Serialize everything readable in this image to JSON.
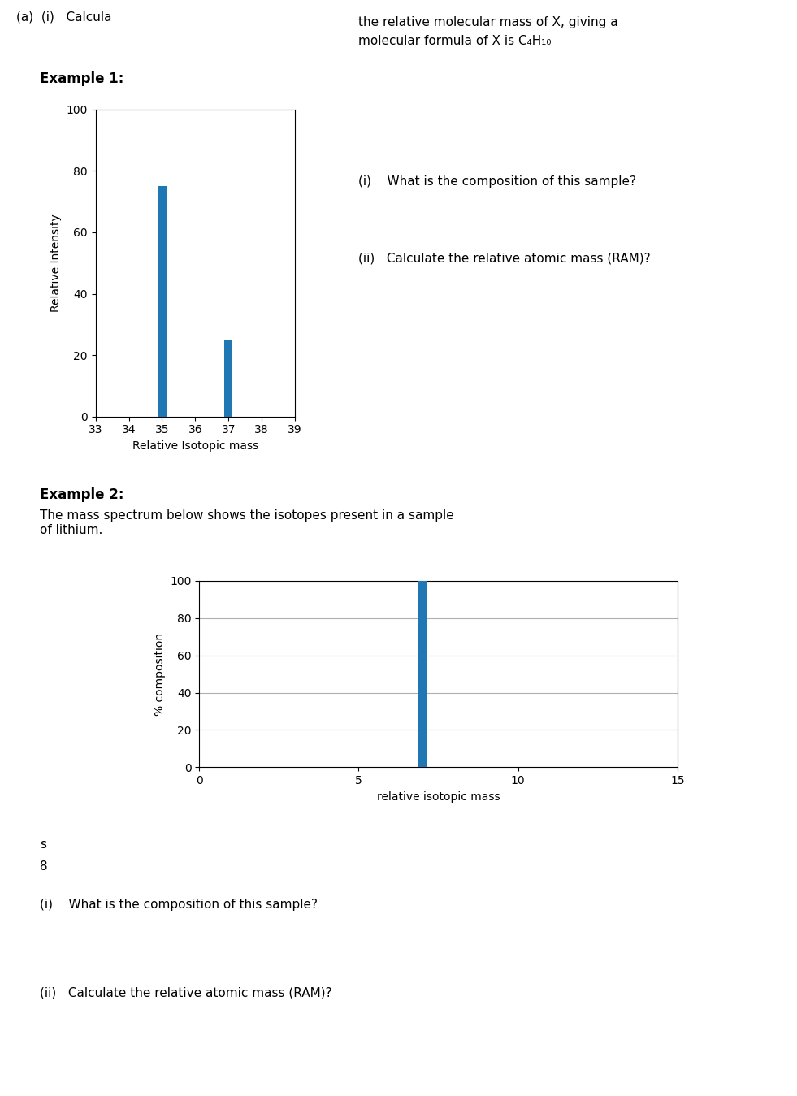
{
  "chart_data": [
    {
      "type": "bar",
      "title": "Example 1:",
      "xlabel": "Relative Isotopic mass",
      "ylabel": "Relative Intensity",
      "x": [
        35,
        37
      ],
      "values": [
        75,
        25
      ],
      "xlim": [
        33,
        39
      ],
      "xticks": [
        33,
        34,
        35,
        36,
        37,
        38,
        39
      ],
      "ylim": [
        0,
        100
      ],
      "yticks": [
        0,
        20,
        40,
        60,
        80,
        100
      ],
      "grid": false,
      "annotations": [
        "(a)  (i)   Calcula",
        "the relative molecular mass of X, giving a",
        "molecular formula of X is C₄H₁₀",
        "(i)    What is the composition of this sample?",
        "(ii)   Calculate the relative atomic mass (RAM)?"
      ]
    },
    {
      "type": "bar",
      "title": "Example 2:",
      "subtitle": "The mass spectrum below shows the isotopes present in a sample\nof lithium.",
      "xlabel": "relative isotopic mass",
      "ylabel": "% composition",
      "x": [
        7
      ],
      "values": [
        100
      ],
      "xlim": [
        0,
        15
      ],
      "xticks": [
        0,
        5,
        10,
        15
      ],
      "ylim": [
        0,
        100
      ],
      "yticks": [
        0,
        20,
        40,
        60,
        80,
        100
      ],
      "grid": true,
      "annotations": [
        "s",
        "8",
        "(i)    What is the composition of this sample?",
        "(ii)   Calculate the relative atomic mass (RAM)?"
      ]
    }
  ]
}
